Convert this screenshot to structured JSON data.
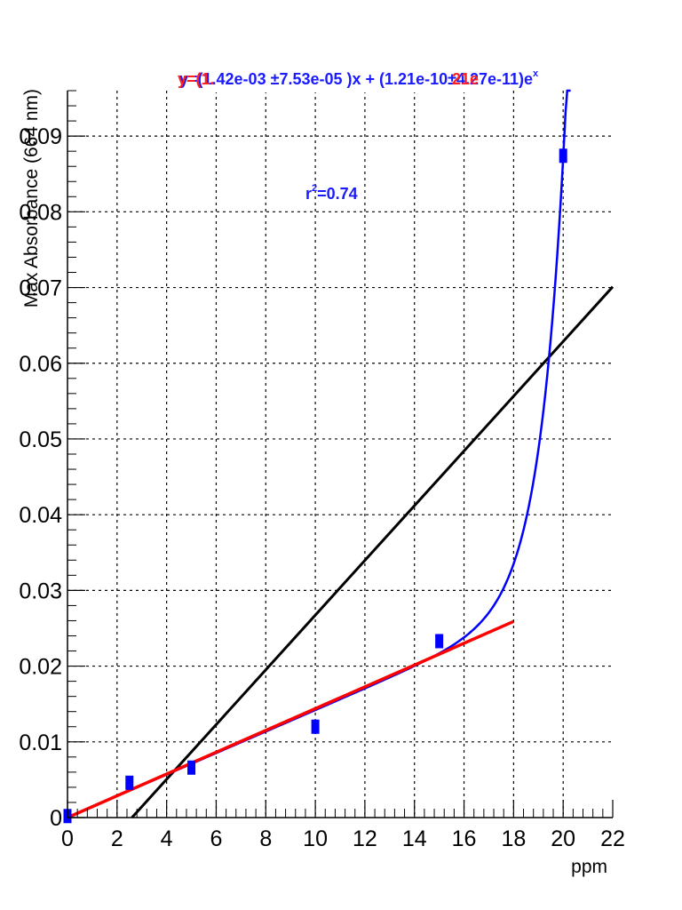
{
  "colors": {
    "data_points": "#0000ff",
    "exp_fit": "#0000ff",
    "linear_fit": "#ff0000",
    "reference_line": "#000000",
    "fit_text": "#1a1aff",
    "overlay_text": "#ff2020",
    "grid": "#000000"
  },
  "chart_data": {
    "type": "scatter",
    "xlabel": "ppm",
    "ylabel": "Max Absorbance (664 nm)",
    "xlim": [
      0,
      22
    ],
    "ylim": [
      0,
      0.096
    ],
    "grid": true,
    "x_ticks": [
      0,
      2,
      4,
      6,
      8,
      10,
      12,
      14,
      16,
      18,
      20,
      22
    ],
    "x_tick_labels": [
      "0",
      "2",
      "4",
      "6",
      "8",
      "10",
      "12",
      "14",
      "16",
      "18",
      "20",
      "22"
    ],
    "y_ticks": [
      0,
      0.01,
      0.02,
      0.03,
      0.04,
      0.05,
      0.06,
      0.07,
      0.08,
      0.09
    ],
    "y_tick_labels": [
      "0",
      "0.01",
      "0.02",
      "0.03",
      "0.04",
      "0.05",
      "0.06",
      "0.07",
      "0.08",
      "0.09"
    ],
    "fit_equation": "y=(1.42e-03  ±7.53e-05  )x + (1.21e-10±4.27e-11)e",
    "fit_equation_sup": "x",
    "overlay_fragment_left": "y=(1.",
    "overlay_fragment_right": "21e",
    "r_squared_label": "r",
    "r_squared_sup": "2",
    "r_squared_value": "=0.74",
    "series": [
      {
        "type": "scatter",
        "x": [
          0,
          2.5,
          5,
          10,
          15,
          20
        ],
        "y": [
          0.0002,
          0.0046,
          0.0066,
          0.012,
          0.0233,
          0.0874
        ]
      },
      {
        "type": "curve",
        "slope": 0.00142,
        "exp_coeff": 1.21e-10,
        "x_range": [
          0,
          20.3
        ]
      },
      {
        "type": "line",
        "x": [
          0,
          18
        ],
        "y": [
          0,
          0.0259
        ]
      },
      {
        "type": "line",
        "x": [
          2.6,
          22
        ],
        "y": [
          0,
          0.0701
        ]
      }
    ]
  }
}
